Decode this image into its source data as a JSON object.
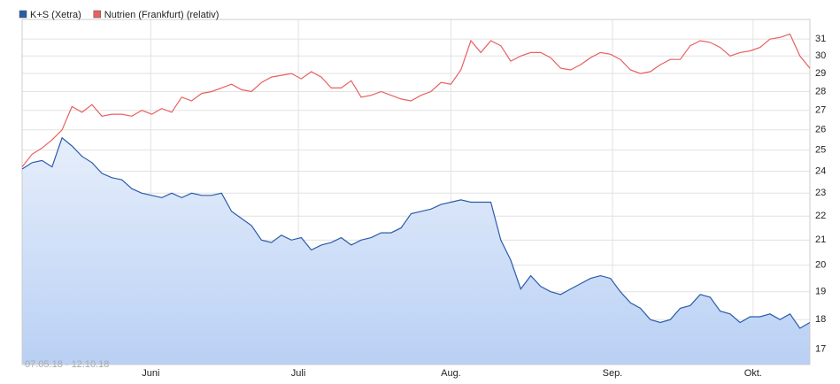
{
  "chart_data": {
    "type": "line",
    "log_scale": true,
    "grid": true,
    "legend": "top-left",
    "annotation": "07.05.18 - 12.10.18",
    "xlim": [
      0,
      79
    ],
    "xticks": [
      {
        "value": 12.9,
        "label": "Juni"
      },
      {
        "value": 27.7,
        "label": "Juli"
      },
      {
        "value": 43.0,
        "label": "Aug."
      },
      {
        "value": 59.2,
        "label": "Sep."
      },
      {
        "value": 73.3,
        "label": "Okt."
      }
    ],
    "ylim": [
      16.5,
      32.2
    ],
    "yticks": [
      17,
      18,
      19,
      20,
      21,
      22,
      23,
      24,
      25,
      26,
      27,
      28,
      29,
      30,
      31
    ],
    "series": [
      {
        "name": "K+S (Xetra)",
        "color": "#2a5caa",
        "area": true,
        "values": [
          24.1,
          24.4,
          24.5,
          24.2,
          25.6,
          25.2,
          24.7,
          24.4,
          23.9,
          23.7,
          23.6,
          23.2,
          23.0,
          22.9,
          22.8,
          23.0,
          22.8,
          23.0,
          22.9,
          22.9,
          23.0,
          22.2,
          21.9,
          21.6,
          21.0,
          20.9,
          21.2,
          21.0,
          21.1,
          20.6,
          20.8,
          20.9,
          21.1,
          20.8,
          21.0,
          21.1,
          21.3,
          21.3,
          21.5,
          22.1,
          22.2,
          22.3,
          22.5,
          22.6,
          22.7,
          22.6,
          22.6,
          22.6,
          21.0,
          20.2,
          19.1,
          19.6,
          19.2,
          19.0,
          18.9,
          19.1,
          19.3,
          19.5,
          19.6,
          19.5,
          19.0,
          18.6,
          18.4,
          18.0,
          17.9,
          18.0,
          18.4,
          18.5,
          18.9,
          18.8,
          18.3,
          18.2,
          17.9,
          18.1,
          18.1,
          18.2,
          18.0,
          18.2,
          17.7,
          17.9
        ]
      },
      {
        "name": "Nutrien (Frankfurt) (relativ)",
        "color": "#e86060",
        "area": false,
        "values": [
          24.2,
          24.8,
          25.1,
          25.5,
          26.0,
          27.2,
          26.9,
          27.3,
          26.7,
          26.8,
          26.8,
          26.7,
          27.0,
          26.8,
          27.1,
          26.9,
          27.7,
          27.5,
          27.9,
          28.0,
          28.2,
          28.4,
          28.1,
          28.0,
          28.5,
          28.8,
          28.9,
          29.0,
          28.7,
          29.1,
          28.8,
          28.2,
          28.2,
          28.6,
          27.7,
          27.8,
          28.0,
          27.8,
          27.6,
          27.5,
          27.8,
          28.0,
          28.5,
          28.4,
          29.2,
          30.9,
          30.2,
          30.9,
          30.6,
          29.7,
          30.0,
          30.2,
          30.2,
          29.9,
          29.3,
          29.2,
          29.5,
          29.9,
          30.2,
          30.1,
          29.8,
          29.2,
          29.0,
          29.1,
          29.5,
          29.8,
          29.8,
          30.6,
          30.9,
          30.8,
          30.5,
          30.0,
          30.2,
          30.3,
          30.5,
          31.0,
          31.1,
          31.3,
          30.0,
          29.3
        ]
      }
    ]
  }
}
